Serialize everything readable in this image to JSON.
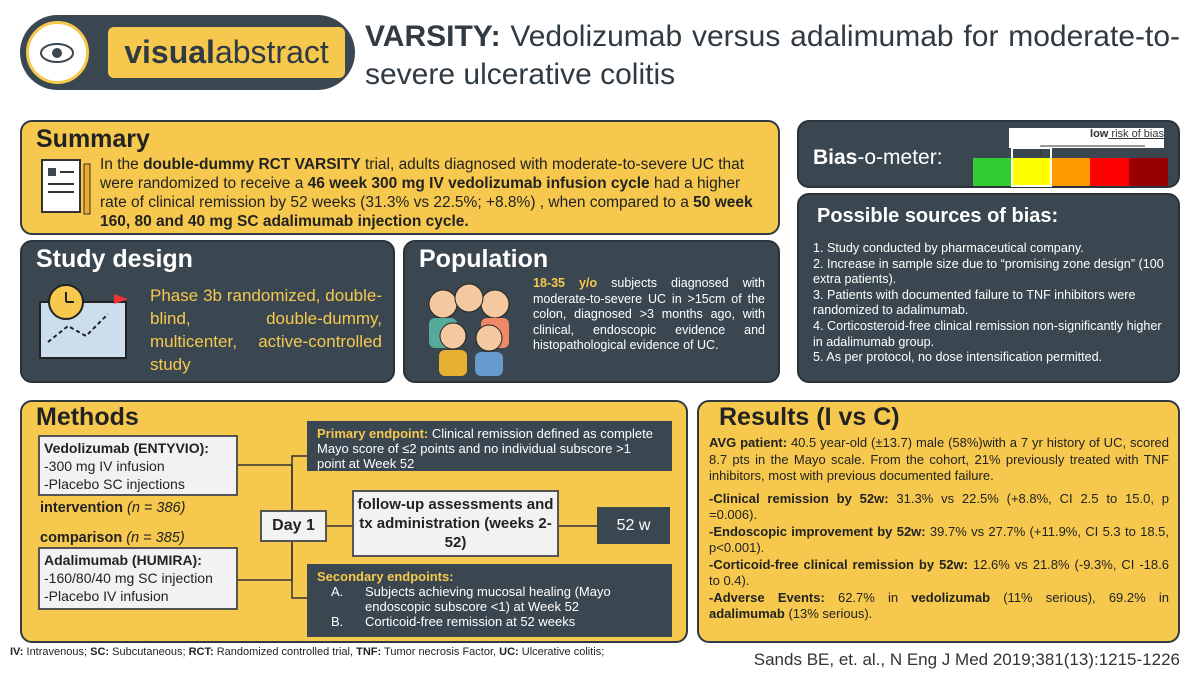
{
  "logo": [
    "visual",
    "abstract"
  ],
  "title": [
    "VARSITY:",
    " Vedolizumab versus adalimumab for moderate-to-severe ulcerative colitis"
  ],
  "summary": {
    "heading": "Summary",
    "text": [
      "In the ",
      "double-dummy RCT VARSITY",
      " trial, adults diagnosed with moderate-to-severe UC that were randomized to receive a ",
      "46 week 300 mg IV vedolizumab infusion cycle",
      " had a higher rate of clinical remission by 52 weeks (31.3% vs 22.5%; +8.8%) , when compared to a ",
      "50 week 160, 80 and 40 mg SC adalimumab injection cycle."
    ]
  },
  "study_design": {
    "heading": "Study design",
    "text": "Phase 3b randomized, double-blind, double-dummy, multicenter, active-controlled study"
  },
  "population": {
    "heading": "Population",
    "text": [
      "18-35 y/o",
      " subjects diagnosed with moderate-to-severe UC in >15cm of the colon, diagnosed >3 months ago, with clinical, endoscopic evidence and histopathological evidence of UC."
    ]
  },
  "bias_meter": {
    "heading": [
      "Bias",
      "-o-meter:"
    ],
    "label": [
      "low",
      " risk of bias"
    ]
  },
  "sources_of_bias": {
    "heading": "Possible sources of bias:",
    "items": [
      "1. Study conducted by pharmaceutical company.",
      "2. Increase in sample size due to “promising zone design” (100 extra patients).",
      "3. Patients with documented failure to TNF inhibitors were randomized to adalimumab.",
      "4. Corticosteroid-free clinical remission non-significantly higher in adalimumab group.",
      "5. As per protocol, no dose intensification permitted."
    ]
  },
  "methods": {
    "heading": "Methods",
    "intervention_arm": {
      "title": "Vedolizumab (ENTYVIO):",
      "lines": [
        "-300 mg IV infusion",
        "-Placebo SC injections"
      ],
      "label": [
        "intervention",
        " (n = 386)"
      ]
    },
    "comparison_arm": {
      "title": "Adalimumab (HUMIRA):",
      "lines": [
        "-160/80/40 mg SC injection",
        "-Placebo IV infusion"
      ],
      "label": [
        "comparison",
        " (n = 385)"
      ]
    },
    "start": "Day 1",
    "follow_up": "follow-up assessments and tx administration (weeks 2-52)",
    "end": "52 w",
    "primary_endpoint": [
      "Primary endpoint:",
      " Clinical remission defined as complete Mayo score of ≤2 points and no individual subscore >1 point at Week 52"
    ],
    "secondary_endpoints": {
      "title": "Secondary endpoints:",
      "items": [
        {
          "marker": "A.",
          "text": "Subjects achieving mucosal healing (Mayo endoscopic subscore <1) at Week 52"
        },
        {
          "marker": "B.",
          "text": "Corticoid-free remission at 52 weeks"
        }
      ]
    }
  },
  "results": {
    "heading": "Results (I vs C)",
    "average_patient": [
      "AVG patient:",
      " 40.5 year-old (±13.7) male (58%)with a 7 yr history of UC, scored 8.7 pts in the Mayo scale. From the cohort, 21% previously treated with TNF inhibitors, most with previous documented failure."
    ],
    "items": [
      [
        "-Clinical remission by 52w:",
        " 31.3% vs 22.5% (+8.8%, CI 2.5 to 15.0, p =0.006)."
      ],
      [
        "-Endoscopic improvement by 52w:",
        " 39.7% vs 27.7% (+11.9%, CI 5.3 to 18.5, p<0.001)."
      ],
      [
        "-Corticoid-free clinical remission by 52w:",
        " 12.6% vs 21.8% (-9.3%, CI -18.6 to 0.4)."
      ],
      [
        "-Adverse Events:",
        " 62.7% in ",
        "vedolizumab",
        " (11% serious), 69.2% in ",
        "adalimumab",
        " (13% serious)."
      ]
    ]
  },
  "abbreviations": [
    "IV:",
    " Intravenous; ",
    "SC:",
    " Subcutaneous; ",
    "RCT:",
    " Randomized controlled trial, ",
    "TNF:",
    " Tumor necrosis Factor, ",
    "UC:",
    " Ulcerative colitis;"
  ],
  "citation": "Sands BE, et. al., N Eng J Med 2019;381(13):1215-1226"
}
